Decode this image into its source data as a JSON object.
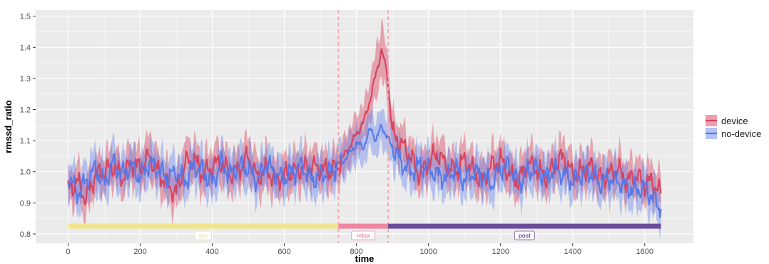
{
  "chart_data": {
    "type": "line",
    "title": "",
    "xlabel": "time",
    "ylabel": "rmssd_ratio",
    "xlim": [
      -90,
      1735
    ],
    "ylim": [
      0.77,
      1.52
    ],
    "x_ticks": [
      0,
      200,
      400,
      600,
      800,
      1000,
      1200,
      1400,
      1600
    ],
    "y_ticks": [
      0.8,
      0.9,
      1.0,
      1.1,
      1.2,
      1.3,
      1.4,
      1.5
    ],
    "x_tick_labels": [
      "0",
      "200",
      "400",
      "600",
      "800",
      "1000",
      "1200",
      "1400",
      "1600"
    ],
    "y_tick_labels": [
      "0.8",
      "0.9",
      "1.0",
      "1.1",
      "1.2",
      "1.3",
      "1.4",
      "1.5"
    ],
    "grid": true,
    "legend_position": "right",
    "vlines": [
      750,
      888
    ],
    "vline_color": "#f4a6b4",
    "phase_band_y": 0.825,
    "phases": [
      {
        "label": "pre",
        "start": 0,
        "end": 750,
        "color": "#f2e48e"
      },
      {
        "label": "relax",
        "start": 750,
        "end": 888,
        "color": "#ef86a0"
      },
      {
        "label": "post",
        "start": 888,
        "end": 1645,
        "color": "#6b4c9a"
      }
    ],
    "series": [
      {
        "name": "device",
        "color": "#d6405e",
        "band_color": "#d6405e",
        "x": [
          0,
          25,
          50,
          75,
          100,
          125,
          150,
          175,
          200,
          225,
          250,
          275,
          300,
          325,
          350,
          375,
          400,
          425,
          450,
          475,
          500,
          525,
          550,
          575,
          600,
          625,
          650,
          675,
          700,
          725,
          750,
          775,
          800,
          820,
          840,
          855,
          870,
          885,
          900,
          925,
          950,
          975,
          1000,
          1025,
          1050,
          1075,
          1100,
          1125,
          1150,
          1175,
          1200,
          1225,
          1250,
          1275,
          1300,
          1325,
          1350,
          1375,
          1400,
          1425,
          1450,
          1475,
          1500,
          1525,
          1550,
          1575,
          1600,
          1620,
          1645
        ],
        "y": [
          0.94,
          0.97,
          0.91,
          0.99,
          1.0,
          1.02,
          0.98,
          1.03,
          1.01,
          1.05,
          1.0,
          0.96,
          0.93,
          1.03,
          1.04,
          0.99,
          1.02,
          1.03,
          0.99,
          1.01,
          1.05,
          0.98,
          1.01,
          0.97,
          0.99,
          1.0,
          1.01,
          1.02,
          1.01,
          1.0,
          1.02,
          1.07,
          1.12,
          1.16,
          1.24,
          1.32,
          1.39,
          1.32,
          1.12,
          1.09,
          1.05,
          0.99,
          1.03,
          1.06,
          1.02,
          1.0,
          1.04,
          1.0,
          0.97,
          1.02,
          1.04,
          0.99,
          0.97,
          1.03,
          1.01,
          0.98,
          1.02,
          1.05,
          0.99,
          1.0,
          1.02,
          0.98,
          0.99,
          1.01,
          0.97,
          0.99,
          0.96,
          0.97,
          0.93
        ],
        "band_width": [
          0.055,
          0.06,
          0.065,
          0.055,
          0.06,
          0.06,
          0.055,
          0.065,
          0.06,
          0.07,
          0.06,
          0.065,
          0.06,
          0.07,
          0.06,
          0.065,
          0.06,
          0.065,
          0.06,
          0.06,
          0.07,
          0.06,
          0.065,
          0.06,
          0.06,
          0.06,
          0.065,
          0.06,
          0.06,
          0.06,
          0.06,
          0.06,
          0.065,
          0.06,
          0.07,
          0.08,
          0.085,
          0.08,
          0.06,
          0.06,
          0.06,
          0.06,
          0.06,
          0.06,
          0.06,
          0.06,
          0.06,
          0.06,
          0.06,
          0.06,
          0.06,
          0.06,
          0.06,
          0.06,
          0.06,
          0.06,
          0.06,
          0.06,
          0.06,
          0.06,
          0.06,
          0.06,
          0.06,
          0.06,
          0.06,
          0.06,
          0.06,
          0.06,
          0.055
        ]
      },
      {
        "name": "no-device",
        "color": "#5577e8",
        "band_color": "#6a86ec",
        "x": [
          0,
          25,
          50,
          75,
          100,
          125,
          150,
          175,
          200,
          225,
          250,
          275,
          300,
          325,
          350,
          375,
          400,
          425,
          450,
          475,
          500,
          525,
          550,
          575,
          600,
          625,
          650,
          675,
          700,
          725,
          750,
          775,
          800,
          820,
          840,
          855,
          870,
          885,
          900,
          925,
          950,
          975,
          1000,
          1025,
          1050,
          1075,
          1100,
          1125,
          1150,
          1175,
          1200,
          1225,
          1250,
          1275,
          1300,
          1325,
          1350,
          1375,
          1400,
          1425,
          1450,
          1475,
          1500,
          1525,
          1550,
          1575,
          1600,
          1620,
          1645
        ],
        "y": [
          0.99,
          0.93,
          0.97,
          1.01,
          0.96,
          1.03,
          0.99,
          1.02,
          0.98,
          1.03,
          1.01,
          0.98,
          1.0,
          0.97,
          1.02,
          1.0,
          0.96,
          1.03,
          0.99,
          1.02,
          1.01,
          0.97,
          1.03,
          0.99,
          0.98,
          1.0,
          1.02,
          0.97,
          0.99,
          1.0,
          1.02,
          1.05,
          1.09,
          1.08,
          1.14,
          1.1,
          1.15,
          1.11,
          1.08,
          1.03,
          1.0,
          1.02,
          1.01,
          0.99,
          0.98,
          1.01,
          0.97,
          1.0,
          0.99,
          0.96,
          1.01,
          1.02,
          0.96,
          1.0,
          1.01,
          0.98,
          1.01,
          0.99,
          0.97,
          0.99,
          1.0,
          0.96,
          0.98,
          0.97,
          0.95,
          0.94,
          0.95,
          0.92,
          0.88
        ],
        "band_width": [
          0.055,
          0.06,
          0.06,
          0.065,
          0.06,
          0.065,
          0.06,
          0.06,
          0.06,
          0.06,
          0.06,
          0.06,
          0.06,
          0.06,
          0.06,
          0.06,
          0.06,
          0.06,
          0.06,
          0.06,
          0.065,
          0.06,
          0.06,
          0.06,
          0.06,
          0.06,
          0.06,
          0.06,
          0.06,
          0.06,
          0.06,
          0.06,
          0.06,
          0.06,
          0.06,
          0.06,
          0.06,
          0.06,
          0.06,
          0.06,
          0.06,
          0.06,
          0.06,
          0.06,
          0.06,
          0.06,
          0.06,
          0.06,
          0.06,
          0.06,
          0.06,
          0.06,
          0.06,
          0.06,
          0.06,
          0.06,
          0.06,
          0.06,
          0.06,
          0.06,
          0.06,
          0.06,
          0.06,
          0.06,
          0.06,
          0.06,
          0.06,
          0.06,
          0.06
        ]
      }
    ]
  }
}
